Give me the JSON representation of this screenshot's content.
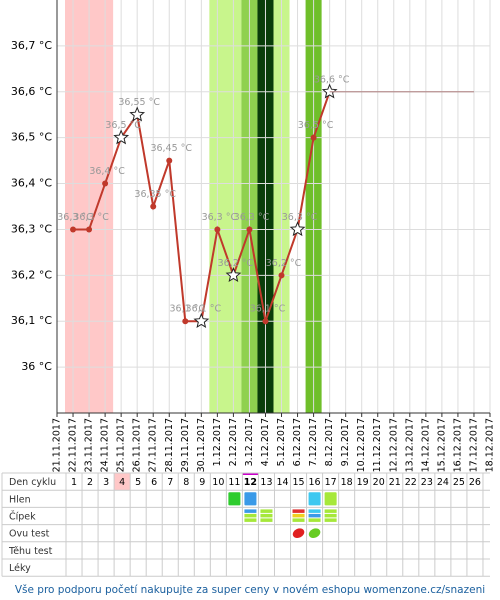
{
  "chart_data": {
    "type": "line",
    "categories": [
      "21.11.2017",
      "22.11.2017",
      "23.11.2017",
      "24.11.2017",
      "25.11.2017",
      "26.11.2017",
      "27.11.2017",
      "28.11.2017",
      "29.11.2017",
      "30.11.2017",
      "1.12.2017",
      "2.12.2017",
      "3.12.2017",
      "4.12.2017",
      "5.12.2017",
      "6.12.2017",
      "7.12.2017",
      "8.12.2017",
      "9.12.2017",
      "10.12.2017",
      "11.12.2017",
      "12.12.2017",
      "13.12.2017",
      "14.12.2017",
      "15.12.2017",
      "16.12.2017",
      "17.12.2017",
      "18.12.2017"
    ],
    "series": [
      {
        "color": "#c0392b",
        "values": [
          null,
          36.3,
          36.3,
          36.4,
          36.5,
          36.55,
          36.35,
          36.45,
          36.1,
          36.1,
          36.3,
          36.2,
          36.3,
          36.1,
          36.2,
          36.3,
          36.5,
          36.6,
          null,
          null,
          null,
          null,
          null,
          null,
          null,
          null,
          null,
          null
        ],
        "value_labels": [
          null,
          "36,3 °C",
          "36,3 °C",
          "36,4 °C",
          "36,5 °C",
          "36,55 °C",
          "36,35 °C",
          "36,45 °C",
          "36,1 °C",
          "36,1 °C",
          "36,3 °C",
          "36,2 °C",
          "36,3 °C",
          "36,1 °C",
          "36,2 °C",
          "36,3 °C",
          "36,5 °C",
          "36,6 °C",
          null,
          null,
          null,
          null,
          null,
          null,
          null,
          null,
          null,
          null
        ],
        "markers": [
          null,
          "dot",
          "dot",
          "dot",
          "star",
          "star",
          "dot",
          "dot",
          "dot",
          "star",
          "dot",
          "star",
          "dot",
          "dot",
          "dot",
          "star",
          "dot",
          "star",
          null,
          null,
          null,
          null,
          null,
          null,
          null,
          null,
          null,
          null
        ]
      },
      {
        "color": "#b89090",
        "values": [
          null,
          null,
          null,
          null,
          null,
          null,
          null,
          null,
          null,
          null,
          null,
          null,
          null,
          null,
          null,
          null,
          null,
          36.6,
          36.6,
          36.6,
          36.6,
          36.6,
          36.6,
          36.6,
          36.6,
          36.6,
          36.6,
          null
        ]
      }
    ],
    "bands": [
      {
        "start": 1,
        "end": 3,
        "color": "#ffc8c8"
      },
      {
        "start": 10,
        "end": 11,
        "color": "#c8f58c"
      },
      {
        "start": 12,
        "end": 12,
        "color": "#8fd14f"
      },
      {
        "start": 13,
        "end": 13,
        "color": "#0a3d0a"
      },
      {
        "start": 14,
        "end": 14,
        "color": "#c8f58c"
      },
      {
        "start": 16,
        "end": 16,
        "color": "#6fbf2a"
      }
    ],
    "ylim": [
      35.9,
      36.8
    ],
    "yticks": [
      {
        "value": 36,
        "label": "36 °C"
      },
      {
        "value": 36.1,
        "label": "36,1 °C"
      },
      {
        "value": 36.2,
        "label": "36,2 °C"
      },
      {
        "value": 36.3,
        "label": "36,3 °C"
      },
      {
        "value": 36.4,
        "label": "36,4 °C"
      },
      {
        "value": 36.5,
        "label": "36,5 °C"
      },
      {
        "value": 36.6,
        "label": "36,6 °C"
      },
      {
        "value": 36.7,
        "label": "36,7 °C"
      }
    ],
    "grid": true
  },
  "cycle_table": {
    "row_labels": [
      "Den cyklu",
      "Hlen",
      "Čípek",
      "Ovu test",
      "Těhu test",
      "Léky"
    ],
    "days": [
      1,
      2,
      3,
      4,
      5,
      6,
      7,
      8,
      9,
      10,
      11,
      12,
      13,
      14,
      15,
      16,
      17,
      18,
      19,
      20,
      21,
      22,
      23,
      24,
      25,
      26
    ],
    "highlight_day": 4,
    "current_day": 12
  },
  "footer": "Vše pro podporu početí nakupujte za super ceny v novém eshopu womenzone.cz/snazeni"
}
